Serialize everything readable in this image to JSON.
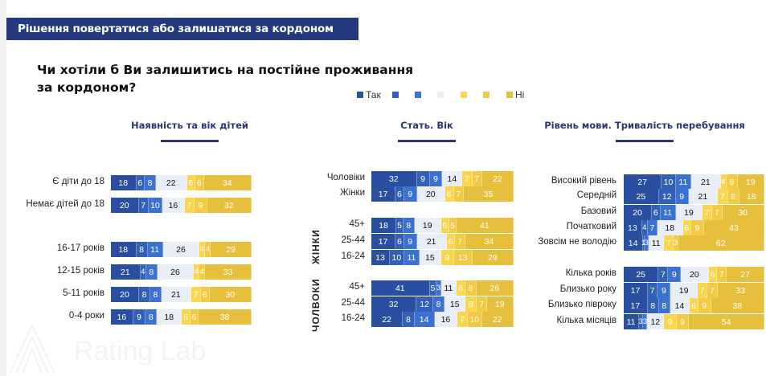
{
  "header": {
    "title": "Рішення повертатися або залишатися за кордоном"
  },
  "question": {
    "title": "Чи хотіли б Ви залишитись на постійне проживання за кордоном?"
  },
  "legend": [
    {
      "label": "Так",
      "color": "#2b4fa0"
    },
    {
      "label": "",
      "color": "#3361b6"
    },
    {
      "label": "",
      "color": "#3b72d2"
    },
    {
      "label": "",
      "color": "#e9edf5"
    },
    {
      "label": "",
      "color": "#fad64e"
    },
    {
      "label": "",
      "color": "#f0cb43"
    },
    {
      "label": "Ні",
      "color": "#e6c03c"
    }
  ],
  "watermark": "Rating Lab",
  "chart_data": [
    {
      "type": "bar",
      "orientation": "horizontal",
      "stacked": true,
      "title": "Наявність та вік дітей",
      "series_names": [
        "Так",
        "",
        "",
        "",
        "",
        "",
        "Ні"
      ],
      "groups": [
        {
          "label": "",
          "categories": [
            "Є діти до 18",
            "Немає дітей до 18"
          ],
          "values": [
            [
              18,
              6,
              8,
              22,
              6,
              6,
              34
            ],
            [
              20,
              7,
              10,
              16,
              7,
              9,
              32
            ]
          ]
        },
        {
          "label": "",
          "categories": [
            "16-17 років",
            "12-15 років",
            "5-11 років",
            "0-4 роки"
          ],
          "values": [
            [
              18,
              8,
              11,
              26,
              4,
              4,
              29
            ],
            [
              21,
              4,
              8,
              26,
              4,
              4,
              33
            ],
            [
              20,
              8,
              8,
              21,
              7,
              6,
              30
            ],
            [
              16,
              9,
              8,
              18,
              6,
              6,
              38
            ]
          ]
        }
      ]
    },
    {
      "type": "bar",
      "orientation": "horizontal",
      "stacked": true,
      "title": "Стать. Вік",
      "series_names": [
        "Так",
        "",
        "",
        "",
        "",
        "",
        "Ні"
      ],
      "groups": [
        {
          "label": "",
          "categories": [
            "Чоловіки",
            "Жінки"
          ],
          "values": [
            [
              32,
              9,
              9,
              14,
              7,
              7,
              22
            ],
            [
              17,
              6,
              9,
              20,
              6,
              7,
              35
            ]
          ]
        },
        {
          "label": "ЖІНКИ",
          "categories": [
            "45+",
            "25-44",
            "16-24"
          ],
          "values": [
            [
              18,
              5,
              8,
              19,
              6,
              5,
              41
            ],
            [
              17,
              6,
              9,
              21,
              6,
              7,
              34
            ],
            [
              13,
              10,
              11,
              15,
              9,
              13,
              29
            ]
          ]
        },
        {
          "label": "ЧОЛВОКИ",
          "categories": [
            "45+",
            "25-44",
            "16-24"
          ],
          "values": [
            [
              41,
              5,
              3,
              11,
              6,
              8,
              26
            ],
            [
              32,
              12,
              8,
              15,
              8,
              7,
              19
            ],
            [
              22,
              8,
              14,
              16,
              7,
              10,
              22
            ]
          ]
        }
      ]
    },
    {
      "type": "bar",
      "orientation": "horizontal",
      "stacked": true,
      "title": "Рівень мови. Тривалість перебування",
      "series_names": [
        "Так",
        "",
        "",
        "",
        "",
        "",
        "Ні"
      ],
      "groups": [
        {
          "label": "",
          "categories": [
            "Високий рівень",
            "Середній",
            "Базовий",
            "Початковий",
            "Зовсім не володію"
          ],
          "values": [
            [
              27,
              10,
              11,
              21,
              4,
              8,
              19
            ],
            [
              25,
              12,
              9,
              21,
              7,
              8,
              18
            ],
            [
              20,
              6,
              11,
              19,
              7,
              7,
              30
            ],
            [
              13,
              4,
              7,
              18,
              6,
              9,
              43
            ],
            [
              14,
              1,
              3,
              11,
              7,
              3,
              62
            ]
          ]
        },
        {
          "label": "",
          "categories": [
            "Кілька років",
            "Близько року",
            "Близько півроку",
            "Кілька місяців"
          ],
          "values": [
            [
              25,
              7,
              9,
              20,
              6,
              7,
              27
            ],
            [
              17,
              7,
              9,
              19,
              7,
              7,
              33
            ],
            [
              17,
              8,
              8,
              14,
              6,
              9,
              38
            ],
            [
              11,
              3,
              3,
              12,
              9,
              9,
              54
            ]
          ]
        }
      ]
    }
  ]
}
